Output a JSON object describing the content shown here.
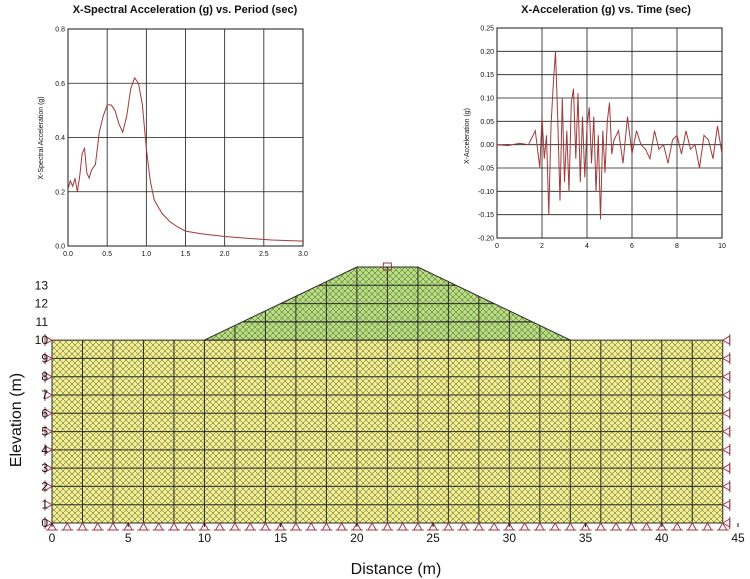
{
  "colors": {
    "curve": "#a03a3a",
    "foundation": "#f2f08a",
    "embankment": "#b5e07a",
    "mesh": "#2a2a2a",
    "support": "#a03a4a"
  },
  "chart_data": [
    {
      "type": "line",
      "title": "X-Spectral Acceleration (g) vs. Period (sec)",
      "xlabel": "",
      "ylabel": "X-Spectral Acceleration (g)",
      "xlim": [
        0,
        3.0
      ],
      "ylim": [
        0,
        0.8
      ],
      "xticks": [
        "0.0",
        "0.5",
        "1.0",
        "1.5",
        "2.0",
        "2.5",
        "3.0"
      ],
      "yticks": [
        "0.0",
        "0.2",
        "0.4",
        "0.6",
        "0.8"
      ],
      "grid": true,
      "series": [
        {
          "x": [
            0.0,
            0.03,
            0.06,
            0.09,
            0.12,
            0.15,
            0.18,
            0.21,
            0.24,
            0.27,
            0.3,
            0.35,
            0.4,
            0.45,
            0.5,
            0.55,
            0.6,
            0.65,
            0.7,
            0.75,
            0.8,
            0.85,
            0.9,
            0.95,
            1.0,
            1.05,
            1.1,
            1.2,
            1.3,
            1.4,
            1.5,
            1.7,
            2.0,
            2.3,
            2.6,
            3.0
          ],
          "y": [
            0.21,
            0.24,
            0.22,
            0.25,
            0.2,
            0.26,
            0.34,
            0.36,
            0.27,
            0.25,
            0.28,
            0.3,
            0.42,
            0.48,
            0.52,
            0.52,
            0.5,
            0.45,
            0.42,
            0.48,
            0.58,
            0.62,
            0.6,
            0.52,
            0.36,
            0.24,
            0.17,
            0.12,
            0.09,
            0.07,
            0.055,
            0.045,
            0.035,
            0.028,
            0.022,
            0.018
          ]
        }
      ]
    },
    {
      "type": "line",
      "title": "X-Acceleration (g) vs. Time (sec)",
      "xlabel": "",
      "ylabel": "X-Acceleration (g)",
      "xlim": [
        0,
        10
      ],
      "ylim": [
        -0.2,
        0.25
      ],
      "xticks": [
        "0",
        "2",
        "4",
        "6",
        "8",
        "10"
      ],
      "yticks": [
        "-0.20",
        "-0.15",
        "-0.10",
        "-0.05",
        "0.00",
        "0.05",
        "0.10",
        "0.15",
        "0.20",
        "0.25"
      ],
      "grid": true,
      "series": [
        {
          "x": [
            0.0,
            0.5,
            1.0,
            1.4,
            1.7,
            1.9,
            2.0,
            2.1,
            2.2,
            2.3,
            2.4,
            2.5,
            2.6,
            2.7,
            2.8,
            2.9,
            3.0,
            3.1,
            3.2,
            3.3,
            3.4,
            3.5,
            3.6,
            3.7,
            3.8,
            3.9,
            4.0,
            4.1,
            4.2,
            4.3,
            4.4,
            4.5,
            4.6,
            4.7,
            4.8,
            4.9,
            5.0,
            5.1,
            5.2,
            5.4,
            5.6,
            5.8,
            6.0,
            6.2,
            6.4,
            6.6,
            6.8,
            7.0,
            7.2,
            7.4,
            7.6,
            7.8,
            8.0,
            8.2,
            8.4,
            8.6,
            8.8,
            9.0,
            9.2,
            9.4,
            9.6,
            9.8,
            10.0
          ],
          "y": [
            0.0,
            -0.002,
            0.003,
            0.0,
            0.03,
            -0.05,
            0.06,
            -0.03,
            0.02,
            -0.15,
            0.04,
            0.13,
            0.2,
            0.05,
            -0.12,
            0.1,
            -0.08,
            0.03,
            -0.1,
            0.09,
            0.12,
            -0.03,
            0.11,
            -0.08,
            0.06,
            -0.07,
            0.04,
            0.08,
            -0.04,
            0.06,
            -0.1,
            0.02,
            -0.16,
            0.03,
            -0.06,
            0.05,
            0.09,
            -0.02,
            0.01,
            0.03,
            -0.04,
            0.06,
            -0.02,
            0.03,
            0.0,
            -0.01,
            -0.03,
            0.03,
            -0.01,
            0.0,
            -0.04,
            0.01,
            0.02,
            -0.02,
            0.03,
            -0.01,
            0.0,
            -0.05,
            0.02,
            0.01,
            -0.03,
            0.04,
            -0.02
          ]
        }
      ]
    },
    {
      "type": "diagram",
      "title": "",
      "xlabel": "Distance (m)",
      "ylabel": "Elevation (m)",
      "xlim": [
        0,
        45
      ],
      "ylim": [
        0,
        14
      ],
      "xticks": [
        "0",
        "5",
        "10",
        "15",
        "20",
        "25",
        "30",
        "35",
        "40",
        "45"
      ],
      "yticks": [
        "0",
        "1",
        "2",
        "3",
        "4",
        "5",
        "6",
        "7",
        "8",
        "9",
        "10",
        "11",
        "12",
        "13"
      ],
      "foundation": {
        "x": [
          0,
          44
        ],
        "y": [
          0,
          10
        ]
      },
      "embankment": {
        "base": [
          10,
          34
        ],
        "crest": [
          20,
          24
        ],
        "base_y": 10,
        "crest_y": 14
      },
      "embankment_layer_y": 11
    }
  ]
}
